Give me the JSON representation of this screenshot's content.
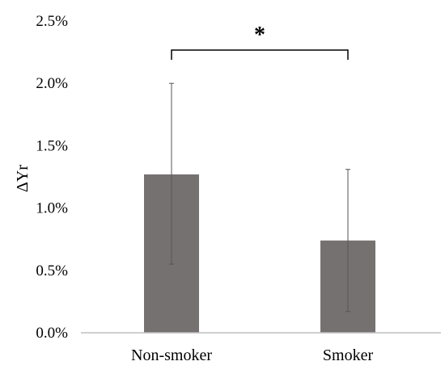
{
  "chart_data": {
    "type": "bar",
    "title": "",
    "xlabel": "",
    "ylabel": "ΔYr",
    "categories": [
      "Non-smoker",
      "Smoker"
    ],
    "values": [
      0.0127,
      0.0074
    ],
    "error_low": [
      0.0055,
      0.0017
    ],
    "error_high": [
      0.02,
      0.0131
    ],
    "ylim": [
      0,
      0.025
    ],
    "yticks": [
      0,
      0.005,
      0.01,
      0.015,
      0.02,
      0.025
    ],
    "ytick_labels": [
      "0.0%",
      "0.5%",
      "1.0%",
      "1.5%",
      "2.0%",
      "2.5%"
    ],
    "grid": false,
    "legend": "none",
    "bar_color": "#767171",
    "significance": {
      "between": [
        "Non-smoker",
        "Smoker"
      ],
      "label": "*"
    }
  }
}
